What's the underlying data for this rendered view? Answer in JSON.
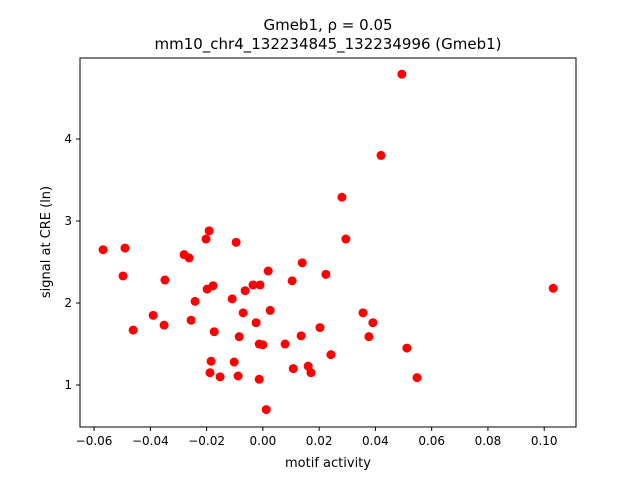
{
  "chart_data": {
    "type": "scatter",
    "title_line1": "Gmeb1, ρ = 0.05",
    "title_line2": "mm10_chr4_132234845_132234996 (Gmeb1)",
    "xlabel": "motif activity",
    "ylabel": "signal at CRE (ln)",
    "xlim": [
      -0.065,
      0.1113
    ],
    "ylim": [
      0.488,
      4.988
    ],
    "xticks": [
      -0.06,
      -0.04,
      -0.02,
      0.0,
      0.02,
      0.04,
      0.06,
      0.08,
      0.1
    ],
    "xtick_labels": [
      "−0.06",
      "−0.04",
      "−0.02",
      "0.00",
      "0.02",
      "0.04",
      "0.06",
      "0.08",
      "0.10"
    ],
    "yticks": [
      1,
      2,
      3,
      4
    ],
    "ytick_labels": [
      "1",
      "2",
      "3",
      "4"
    ],
    "grid": false,
    "marker_color": "#ff0000",
    "points": [
      [
        -0.0568,
        2.65
      ],
      [
        -0.049,
        2.67
      ],
      [
        -0.0497,
        2.33
      ],
      [
        -0.0461,
        1.67
      ],
      [
        -0.039,
        1.85
      ],
      [
        -0.0348,
        2.28
      ],
      [
        -0.0351,
        1.73
      ],
      [
        -0.028,
        2.59
      ],
      [
        -0.0262,
        2.55
      ],
      [
        -0.0255,
        1.79
      ],
      [
        -0.0241,
        2.02
      ],
      [
        -0.0202,
        2.78
      ],
      [
        -0.0191,
        2.88
      ],
      [
        -0.0198,
        2.17
      ],
      [
        -0.0177,
        2.21
      ],
      [
        -0.0173,
        1.65
      ],
      [
        -0.0184,
        1.29
      ],
      [
        -0.0188,
        1.15
      ],
      [
        -0.0152,
        1.1
      ],
      [
        -0.0095,
        2.74
      ],
      [
        -0.0109,
        2.05
      ],
      [
        -0.0102,
        1.28
      ],
      [
        -0.0084,
        1.59
      ],
      [
        -0.0088,
        1.11
      ],
      [
        -0.007,
        1.88
      ],
      [
        -0.0063,
        2.15
      ],
      [
        -0.0035,
        2.22
      ],
      [
        -0.001,
        2.22
      ],
      [
        -0.0024,
        1.76
      ],
      [
        -0.0013,
        1.5
      ],
      [
        0.0,
        1.49
      ],
      [
        -0.0013,
        1.07
      ],
      [
        0.0012,
        0.7
      ],
      [
        0.0019,
        2.39
      ],
      [
        0.0026,
        1.91
      ],
      [
        0.0079,
        1.5
      ],
      [
        0.0104,
        2.27
      ],
      [
        0.0108,
        1.2
      ],
      [
        0.014,
        2.49
      ],
      [
        0.0136,
        1.6
      ],
      [
        0.0161,
        1.23
      ],
      [
        0.0171,
        1.15
      ],
      [
        0.0203,
        1.7
      ],
      [
        0.0224,
        2.35
      ],
      [
        0.0242,
        1.37
      ],
      [
        0.0281,
        3.29
      ],
      [
        0.0295,
        2.78
      ],
      [
        0.0356,
        1.88
      ],
      [
        0.0377,
        1.59
      ],
      [
        0.0391,
        1.76
      ],
      [
        0.042,
        3.8
      ],
      [
        0.0494,
        4.79
      ],
      [
        0.0512,
        1.45
      ],
      [
        0.0548,
        1.09
      ],
      [
        0.1032,
        2.18
      ]
    ]
  }
}
